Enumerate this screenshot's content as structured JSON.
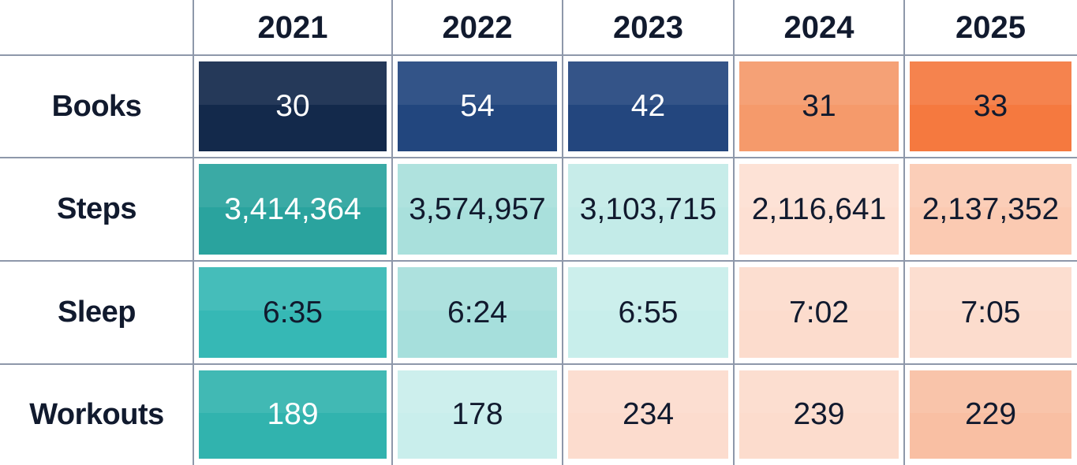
{
  "table": {
    "columns": [
      "2021",
      "2022",
      "2023",
      "2024",
      "2025"
    ],
    "rows": [
      {
        "label": "Books",
        "cells": [
          "30",
          "54",
          "42",
          "31",
          "33"
        ],
        "colors": [
          "#13294b",
          "#22467e",
          "#23467e",
          "#f59a6b",
          "#f5793f"
        ]
      },
      {
        "label": "Steps",
        "cells": [
          "3,414,364",
          "3,574,957",
          "3,103,715",
          "2,116,641",
          "2,137,352"
        ],
        "colors": [
          "#2aa39e",
          "#a9e0dc",
          "#c3ebe8",
          "#fde0d3",
          "#fbcab2"
        ]
      },
      {
        "label": "Sleep",
        "cells": [
          "6:35",
          "6:24",
          "6:55",
          "7:02",
          "7:05"
        ],
        "colors": [
          "#36b8b5",
          "#a6dfdc",
          "#c8eeeb",
          "#fcdccd",
          "#fcdccd"
        ]
      },
      {
        "label": "Workouts",
        "cells": [
          "189",
          "178",
          "234",
          "239",
          "229"
        ],
        "colors": [
          "#31b3ae",
          "#c9eeec",
          "#fcdcce",
          "#fcdccd",
          "#f9bfa3"
        ]
      }
    ]
  }
}
